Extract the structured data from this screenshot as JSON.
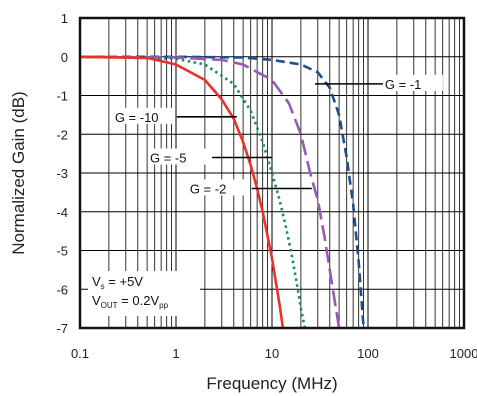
{
  "chart_data": {
    "type": "line",
    "title": "",
    "xlabel": "Frequency (MHz)",
    "ylabel": "Normalized Gain (dB)",
    "xscale": "log",
    "xlim": [
      0.1,
      1000
    ],
    "ylim": [
      -7,
      1
    ],
    "grid": true,
    "x_ticks": [
      "0.1",
      "1",
      "10",
      "100",
      "1000"
    ],
    "y_ticks": [
      "1",
      "0",
      "-1",
      "-2",
      "-3",
      "-4",
      "-5",
      "-6",
      "-7"
    ],
    "conditions": {
      "vs_main": "V",
      "vs_sub": "s",
      "vs_value": " = +5V",
      "vout_main": "V",
      "vout_sub": "OUT",
      "vout_value": " = 0.2V",
      "vout_unit_sub": "pp"
    },
    "series": [
      {
        "name": "G = -1",
        "color": "#1f4e8c",
        "style": "dash",
        "label_point": [
          28,
          -0.7
        ],
        "x": [
          0.1,
          1,
          5,
          10,
          20,
          30,
          40,
          50,
          60,
          70,
          80,
          90
        ],
        "y": [
          0,
          0,
          -0.02,
          -0.08,
          -0.2,
          -0.4,
          -0.8,
          -1.5,
          -2.6,
          -3.8,
          -5.3,
          -7
        ]
      },
      {
        "name": "G = -2",
        "color": "#9b59b6",
        "style": "longdash",
        "label_point": [
          26,
          -3.4
        ],
        "x": [
          0.1,
          1,
          3,
          5,
          10,
          15,
          20,
          25,
          30,
          35,
          40,
          45,
          50
        ],
        "y": [
          0,
          -0.02,
          -0.08,
          -0.2,
          -0.6,
          -1.2,
          -2.0,
          -3.0,
          -3.7,
          -4.6,
          -5.5,
          -6.3,
          -7
        ]
      },
      {
        "name": "G = -5",
        "color": "#1a8a6e",
        "style": "dot",
        "label_point": [
          10,
          -2.6
        ],
        "x": [
          0.1,
          1,
          2,
          4,
          6,
          8,
          10,
          12,
          14,
          16,
          18,
          20,
          22
        ],
        "y": [
          0,
          -0.05,
          -0.2,
          -0.7,
          -1.4,
          -2.2,
          -3.0,
          -3.7,
          -4.4,
          -5.1,
          -5.8,
          -6.5,
          -7
        ]
      },
      {
        "name": "G = -10",
        "color": "#e8322b",
        "style": "solid",
        "label_point": [
          4.3,
          -1.55
        ],
        "x": [
          0.1,
          0.5,
          1,
          2,
          3,
          4,
          5,
          6,
          7,
          8,
          10,
          12,
          13
        ],
        "y": [
          0,
          -0.03,
          -0.2,
          -0.6,
          -1.1,
          -1.6,
          -2.2,
          -2.8,
          -3.4,
          -4.0,
          -5.2,
          -6.4,
          -7
        ]
      }
    ]
  }
}
